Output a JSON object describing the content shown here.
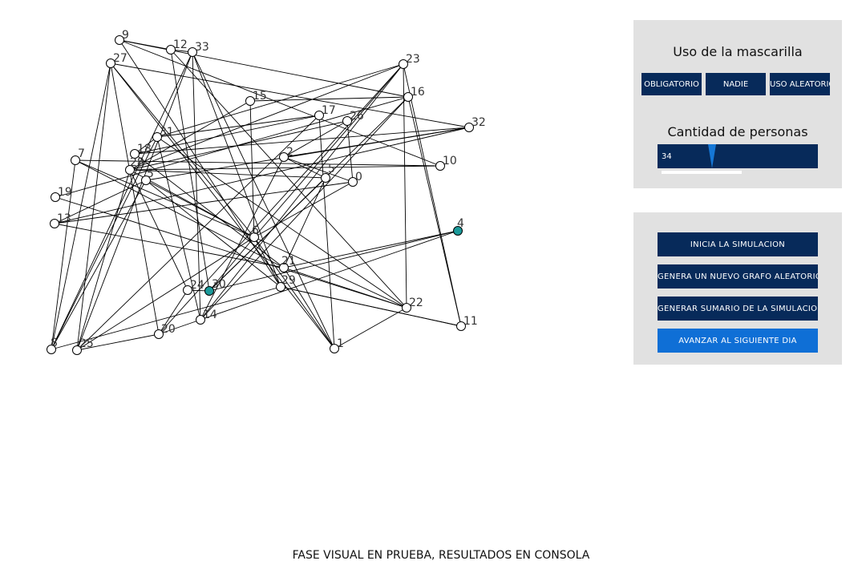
{
  "graph": {
    "nodes": [
      {
        "id": "0",
        "label": "0",
        "infected": false
      },
      {
        "id": "1",
        "label": "1",
        "infected": false
      },
      {
        "id": "2",
        "label": "2",
        "infected": false
      },
      {
        "id": "4",
        "label": "4",
        "infected": true
      },
      {
        "id": "5",
        "label": "5",
        "infected": false
      },
      {
        "id": "5b",
        "label": "5",
        "infected": false
      },
      {
        "id": "6",
        "label": "6",
        "infected": false
      },
      {
        "id": "7",
        "label": "7",
        "infected": false
      },
      {
        "id": "8",
        "label": "8",
        "infected": false
      },
      {
        "id": "9",
        "label": "9",
        "infected": false
      },
      {
        "id": "10",
        "label": "10",
        "infected": false
      },
      {
        "id": "11",
        "label": "11",
        "infected": false
      },
      {
        "id": "12",
        "label": "12",
        "infected": false
      },
      {
        "id": "13",
        "label": "13",
        "infected": false
      },
      {
        "id": "14",
        "label": "14",
        "infected": false
      },
      {
        "id": "15",
        "label": "15",
        "infected": false
      },
      {
        "id": "16",
        "label": "16",
        "infected": false
      },
      {
        "id": "17",
        "label": "17",
        "infected": false
      },
      {
        "id": "18",
        "label": "18",
        "infected": false
      },
      {
        "id": "19",
        "label": "19",
        "infected": false
      },
      {
        "id": "20",
        "label": "20",
        "infected": false
      },
      {
        "id": "21",
        "label": "21",
        "infected": false
      },
      {
        "id": "22",
        "label": "22",
        "infected": false
      },
      {
        "id": "23",
        "label": "23",
        "infected": false
      },
      {
        "id": "24",
        "label": "24",
        "infected": false
      },
      {
        "id": "25",
        "label": "25",
        "infected": false
      },
      {
        "id": "26",
        "label": "26",
        "infected": false
      },
      {
        "id": "27",
        "label": "27",
        "infected": false
      },
      {
        "id": "28",
        "label": "28",
        "infected": false
      },
      {
        "id": "29",
        "label": "29",
        "infected": false
      },
      {
        "id": "30",
        "label": "30",
        "infected": true
      },
      {
        "id": "31",
        "label": "31",
        "infected": false
      },
      {
        "id": "32",
        "label": "32",
        "infected": false
      },
      {
        "id": "33",
        "label": "33",
        "infected": false
      }
    ],
    "edges": [
      [
        "9",
        "12"
      ],
      [
        "9",
        "16"
      ],
      [
        "9",
        "29"
      ],
      [
        "9",
        "10"
      ],
      [
        "27",
        "6"
      ],
      [
        "27",
        "8"
      ],
      [
        "27",
        "25"
      ],
      [
        "27",
        "20"
      ],
      [
        "27",
        "32"
      ],
      [
        "27",
        "1"
      ],
      [
        "12",
        "33"
      ],
      [
        "12",
        "22"
      ],
      [
        "12",
        "30"
      ],
      [
        "33",
        "8"
      ],
      [
        "33",
        "14"
      ],
      [
        "33",
        "29"
      ],
      [
        "33",
        "1"
      ],
      [
        "33",
        "25"
      ],
      [
        "23",
        "28"
      ],
      [
        "23",
        "31"
      ],
      [
        "23",
        "6"
      ],
      [
        "23",
        "20"
      ],
      [
        "16",
        "15"
      ],
      [
        "16",
        "14"
      ],
      [
        "16",
        "30"
      ],
      [
        "16",
        "11"
      ],
      [
        "15",
        "6"
      ],
      [
        "15",
        "28"
      ],
      [
        "17",
        "31"
      ],
      [
        "17",
        "1"
      ],
      [
        "17",
        "18"
      ],
      [
        "17",
        "25"
      ],
      [
        "26",
        "2"
      ],
      [
        "26",
        "0"
      ],
      [
        "26",
        "28"
      ],
      [
        "32",
        "18"
      ],
      [
        "32",
        "13"
      ],
      [
        "32",
        "2"
      ],
      [
        "32",
        "5b"
      ],
      [
        "31",
        "18"
      ],
      [
        "31",
        "14"
      ],
      [
        "31",
        "22"
      ],
      [
        "31",
        "8"
      ],
      [
        "2",
        "0"
      ],
      [
        "2",
        "14"
      ],
      [
        "2",
        "5"
      ],
      [
        "5",
        "21"
      ],
      [
        "5",
        "30"
      ],
      [
        "5",
        "28"
      ],
      [
        "10",
        "28"
      ],
      [
        "10",
        "7"
      ],
      [
        "7",
        "8"
      ],
      [
        "7",
        "21"
      ],
      [
        "7",
        "6"
      ],
      [
        "19",
        "22"
      ],
      [
        "19",
        "16"
      ],
      [
        "13",
        "0"
      ],
      [
        "13",
        "5b"
      ],
      [
        "13",
        "21"
      ],
      [
        "28",
        "6"
      ],
      [
        "28",
        "25"
      ],
      [
        "5b",
        "6"
      ],
      [
        "5b",
        "29"
      ],
      [
        "0",
        "6"
      ],
      [
        "4",
        "30"
      ],
      [
        "4",
        "14"
      ],
      [
        "4",
        "21"
      ],
      [
        "6",
        "1"
      ],
      [
        "6",
        "29"
      ],
      [
        "6",
        "30"
      ],
      [
        "6",
        "22"
      ],
      [
        "6",
        "25"
      ],
      [
        "21",
        "22"
      ],
      [
        "21",
        "1"
      ],
      [
        "21",
        "18"
      ],
      [
        "29",
        "8"
      ],
      [
        "29",
        "11"
      ],
      [
        "30",
        "24"
      ],
      [
        "24",
        "20"
      ],
      [
        "24",
        "28"
      ],
      [
        "22",
        "1"
      ],
      [
        "22",
        "23"
      ],
      [
        "14",
        "20"
      ],
      [
        "14",
        "23"
      ],
      [
        "11",
        "23"
      ],
      [
        "11",
        "29"
      ],
      [
        "8",
        "5b"
      ],
      [
        "25",
        "20"
      ]
    ]
  },
  "mask_panel": {
    "title": "Uso de la mascarilla",
    "options": [
      "OBLIGATORIO",
      "NADIE",
      "USO ALEATORIO"
    ],
    "people_title": "Cantidad de personas",
    "people_count": "34",
    "people_fraction": 0.34
  },
  "sim_panel": {
    "start_label": "INICIA LA SIMULACION",
    "new_graph_label": "GENERA UN NUEVO GRAFO ALEATORIO",
    "summary_label": "GENERAR SUMARIO DE LA SIMULACION",
    "next_day_label": "AVANZAR AL SIGUIENTE DIA"
  },
  "footer": {
    "text": "FASE VISUAL EN PRUEBA, RESULTADOS EN CONSOLA"
  },
  "colors": {
    "panel_bg": "#e1e1e1",
    "button_dark": "#072a5a",
    "button_accent": "#0f6fd6",
    "infected_node": "#1b9a9a"
  }
}
